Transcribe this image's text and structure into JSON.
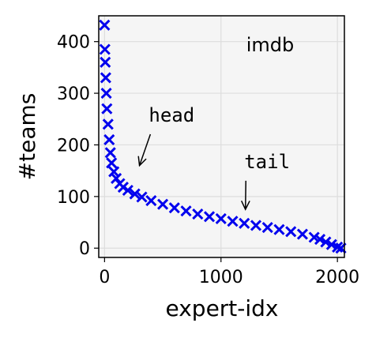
{
  "chart_data": {
    "type": "scatter",
    "title": "imdb",
    "xlabel": "expert-idx",
    "ylabel": "#teams",
    "xlim": [
      -50,
      2060
    ],
    "ylim": [
      -18,
      450
    ],
    "xticks": [
      0,
      1000,
      2000
    ],
    "yticks": [
      0,
      100,
      200,
      300,
      400
    ],
    "grid": true,
    "marker": "x",
    "color": "#0000ee",
    "series": [
      {
        "x": [
          0,
          3,
          6,
          10,
          15,
          20,
          30,
          40,
          50,
          60,
          80,
          100,
          130,
          160,
          200,
          260,
          320,
          400,
          500,
          600,
          700,
          800,
          900,
          1000,
          1100,
          1200,
          1300,
          1400,
          1500,
          1600,
          1700,
          1800,
          1850,
          1900,
          1950,
          2000,
          2030
        ],
        "y": [
          432,
          385,
          360,
          330,
          300,
          270,
          240,
          210,
          185,
          165,
          148,
          135,
          125,
          118,
          112,
          105,
          99,
          92,
          85,
          78,
          72,
          66,
          61,
          57,
          52,
          48,
          44,
          40,
          36,
          32,
          27,
          21,
          17,
          12,
          7,
          2,
          0
        ]
      }
    ],
    "annotations": [
      {
        "text": "head",
        "text_at": [
          380,
          245
        ],
        "arrow_to": [
          300,
          160
        ]
      },
      {
        "text": "tail",
        "text_at": [
          1200,
          155
        ],
        "arrow_to": [
          1210,
          75
        ]
      }
    ]
  }
}
